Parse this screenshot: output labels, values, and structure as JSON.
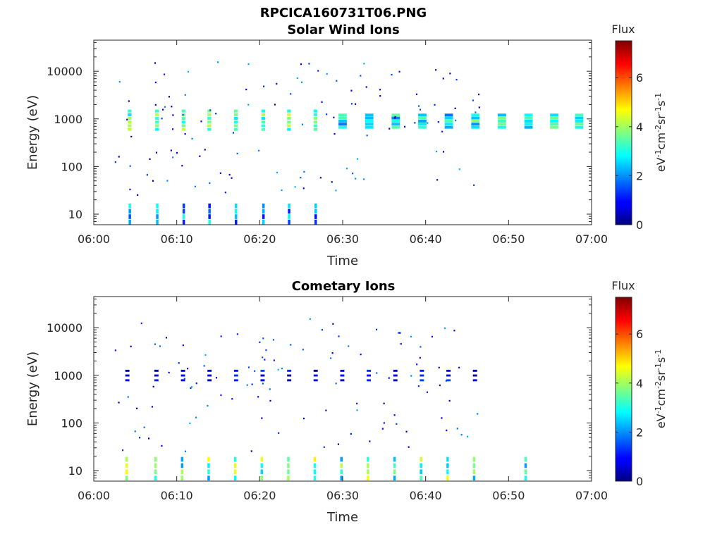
{
  "figure_title": "RPCICA160731T06.PNG",
  "colorbar_range": [
    0,
    7.5
  ],
  "colormap": "jet",
  "chart_data": [
    {
      "type": "heatmap",
      "title": "Solar Wind Ions",
      "xlabel": "Time",
      "ylabel": "Energy (eV)",
      "x_ticks": [
        "06:00",
        "06:10",
        "06:20",
        "06:30",
        "06:40",
        "06:50",
        "07:00"
      ],
      "xlim_minutes": [
        0,
        60
      ],
      "y_scale": "log",
      "ylim": [
        6,
        45000
      ],
      "y_ticks": [
        10,
        100,
        1000,
        10000
      ],
      "y_tick_labels": [
        "10",
        "100",
        "1000",
        "10000"
      ],
      "colorbar": {
        "label": "Flux",
        "units": "eV⁻¹cm⁻²sr⁻¹s⁻¹",
        "ticks": [
          0,
          2,
          4,
          6
        ],
        "range": [
          0,
          7.5
        ]
      },
      "pulse_times_min": [
        4.2,
        7.5,
        10.7,
        13.8,
        17.0,
        20.3,
        23.4,
        26.6
      ],
      "main_beam": {
        "energy_range_eV": [
          550,
          1600
        ],
        "flux_range": [
          2.5,
          4.5
        ]
      },
      "low_energy_band": {
        "energy_range_eV": [
          6,
          17
        ],
        "flux_range": [
          1.0,
          3.0
        ]
      },
      "later_beam_times_min": [
        29.5,
        32.7,
        35.9,
        39.1,
        42.3,
        45.5,
        48.7,
        51.9,
        55.0,
        58.0
      ],
      "scattered_counts": 120
    },
    {
      "type": "heatmap",
      "title": "Cometary Ions",
      "xlabel": "Time",
      "ylabel": "Energy (eV)",
      "x_ticks": [
        "06:00",
        "06:10",
        "06:20",
        "06:30",
        "06:40",
        "06:50",
        "07:00"
      ],
      "xlim_minutes": [
        0,
        60
      ],
      "y_scale": "log",
      "ylim": [
        6,
        45000
      ],
      "y_ticks": [
        10,
        100,
        1000,
        10000
      ],
      "y_tick_labels": [
        "10",
        "100",
        "1000",
        "10000"
      ],
      "colorbar": {
        "label": "Flux",
        "units": "eV⁻¹cm⁻²sr⁻¹s⁻¹",
        "ticks": [
          0,
          2,
          4,
          6
        ],
        "range": [
          0,
          7.5
        ]
      },
      "pulse_times_min": [
        3.8,
        7.3,
        10.5,
        13.7,
        16.9,
        20.1,
        23.3,
        26.5,
        29.7,
        32.9,
        36.1,
        39.3,
        42.5,
        45.7,
        51.9
      ],
      "low_energy_band": {
        "energy_range_eV": [
          6,
          20
        ],
        "flux_range": [
          2.0,
          4.8
        ]
      },
      "mid_band": {
        "energy_range_eV": [
          700,
          1400
        ],
        "flux_range": [
          0.2,
          1.5
        ]
      },
      "scattered_counts": 110
    }
  ]
}
